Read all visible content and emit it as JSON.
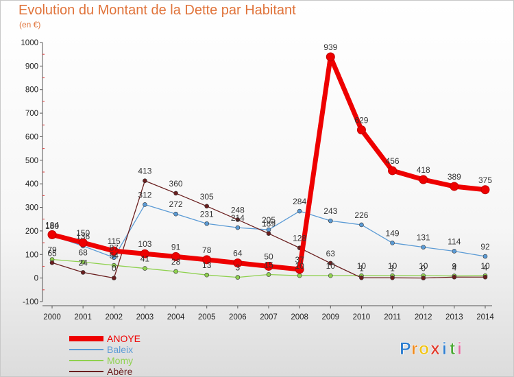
{
  "title": "Evolution du Montant de la Dette par Habitant",
  "subtitle": "(en €)",
  "logo": {
    "letters": [
      "P",
      "r",
      "o",
      "x",
      "i",
      "t",
      "i"
    ],
    "colors": [
      "#2f7fd0",
      "#f08a1c",
      "#f0c419",
      "#e03a2a",
      "#2f7fd0",
      "#4aa832",
      "#e06aa0"
    ]
  },
  "chart_data": {
    "type": "line",
    "title": "Evolution du Montant de la Dette par Habitant",
    "subtitle": "(en €)",
    "x": [
      2000,
      2001,
      2002,
      2003,
      2004,
      2005,
      2006,
      2007,
      2008,
      2009,
      2010,
      2011,
      2012,
      2013,
      2014
    ],
    "ylim": [
      -100,
      1000
    ],
    "yticks": [
      -100,
      0,
      100,
      200,
      300,
      400,
      500,
      600,
      700,
      800,
      900,
      1000
    ],
    "grid": false,
    "legend": "bottom-left",
    "series": [
      {
        "name": "ANOYE",
        "color": "#ee0000",
        "width": 7,
        "marker": 6,
        "values": [
          184,
          150,
          115,
          103,
          91,
          78,
          64,
          50,
          37,
          939,
          629,
          456,
          418,
          389,
          375
        ],
        "labels": [
          "184",
          "150",
          "115",
          "103",
          "91",
          "78",
          "64",
          "50",
          "37",
          "939",
          "629",
          "456",
          "418",
          "389",
          "375"
        ]
      },
      {
        "name": "Baleix",
        "color": "#5b9bd5",
        "width": 1.3,
        "marker": 3,
        "values": [
          180,
          136,
          87,
          312,
          272,
          231,
          214,
          205,
          284,
          243,
          226,
          149,
          131,
          114,
          92
        ],
        "labels": [
          "180",
          "136",
          "87",
          "312",
          "272",
          "231",
          "214",
          "205",
          "284",
          "243",
          "226",
          "149",
          "131",
          "114",
          "92"
        ]
      },
      {
        "name": "Momy",
        "color": "#8fd14f",
        "width": 1.3,
        "marker": 3,
        "values": [
          79,
          68,
          54,
          41,
          28,
          13,
          3,
          15,
          10,
          10,
          10,
          10,
          10,
          9,
          10
        ],
        "labels": [
          "79",
          "68",
          "54",
          "41",
          "28",
          "13",
          "3",
          "15",
          "10",
          "10",
          "10",
          "10",
          "10",
          "9",
          "10"
        ]
      },
      {
        "name": "Abère",
        "color": "#6a1f1f",
        "width": 1.3,
        "marker": 3,
        "values": [
          65,
          24,
          0,
          413,
          360,
          305,
          248,
          189,
          128,
          63,
          1,
          1,
          0,
          4,
          4
        ],
        "labels": [
          "65",
          "24",
          "0",
          "413",
          "360",
          "305",
          "248",
          "189",
          "128",
          "63",
          "1",
          "1",
          "0",
          "4",
          "4"
        ]
      }
    ]
  }
}
